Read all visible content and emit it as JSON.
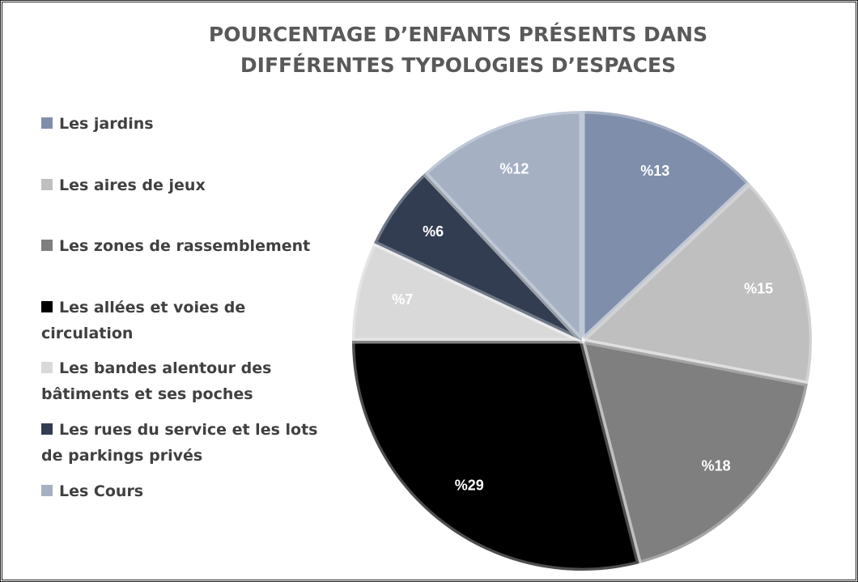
{
  "chart_data": {
    "type": "pie",
    "title": [
      "POURCENTAGE D’ENFANTS PRÉSENTS DANS",
      "DIFFÉRENTES TYPOLOGIES D’ESPACES"
    ],
    "categories": [
      "Les jardins",
      "Les aires de jeux",
      "Les zones de rassemblement",
      "Les allées et voies de circulation",
      "Les bandes alentour des bâtiments et ses poches",
      "Les rues du service et les lots de parkings privés",
      "Les Cours"
    ],
    "values": [
      13,
      15,
      18,
      29,
      7,
      6,
      12
    ],
    "value_labels": [
      "%13",
      "%15",
      "%18",
      "%29",
      "%7",
      "%6",
      "%12"
    ],
    "colors": [
      "#7f8fab",
      "#bfbfbf",
      "#7f7f7f",
      "#000000",
      "#d9d9d9",
      "#323d52",
      "#a5b0c3"
    ],
    "legend": "left"
  }
}
